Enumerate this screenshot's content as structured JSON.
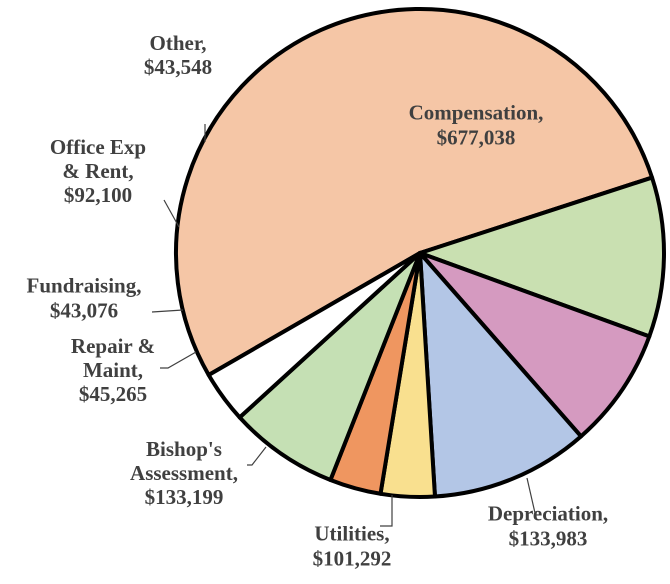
{
  "chart_data": {
    "type": "pie",
    "title": "",
    "slices": [
      {
        "name": "Compensation",
        "value": 677038,
        "value_label": "$677,038",
        "color": "#f5c6a6"
      },
      {
        "name": "Depreciation",
        "value": 133983,
        "value_label": "$133,983",
        "color": "#c9e0b1"
      },
      {
        "name": "Utilities",
        "value": 101292,
        "value_label": "$101,292",
        "color": "#d59ac0"
      },
      {
        "name": "Bishop's Assessment",
        "value": 133199,
        "value_label": "$133,199",
        "color": "#b3c6e6"
      },
      {
        "name": "Repair & Maint",
        "value": 45265,
        "value_label": "$45,265",
        "color": "#f9e08f"
      },
      {
        "name": "Fundraising",
        "value": 43076,
        "value_label": "$43,076",
        "color": "#ef9660"
      },
      {
        "name": "Office Exp & Rent",
        "value": 92100,
        "value_label": "$92,100",
        "color": "#c5e0b4"
      },
      {
        "name": "Other",
        "value": 43548,
        "value_label": "$43,548",
        "color": "#ffffff"
      }
    ],
    "labels": [
      {
        "lines": [
          "Compensation,",
          "$677,038"
        ]
      },
      {
        "lines": [
          "Depreciation,",
          "$133,983"
        ]
      },
      {
        "lines": [
          "Utilities,",
          "$101,292"
        ]
      },
      {
        "lines": [
          "Bishop's",
          "Assessment,",
          "$133,199"
        ]
      },
      {
        "lines": [
          "Repair &",
          "Maint,",
          "$45,265"
        ]
      },
      {
        "lines": [
          "Fundraising,",
          "$43,076"
        ]
      },
      {
        "lines": [
          "Office Exp",
          "& Rent,",
          "$92,100"
        ]
      },
      {
        "lines": [
          "Other,",
          "$43,548"
        ]
      }
    ]
  }
}
